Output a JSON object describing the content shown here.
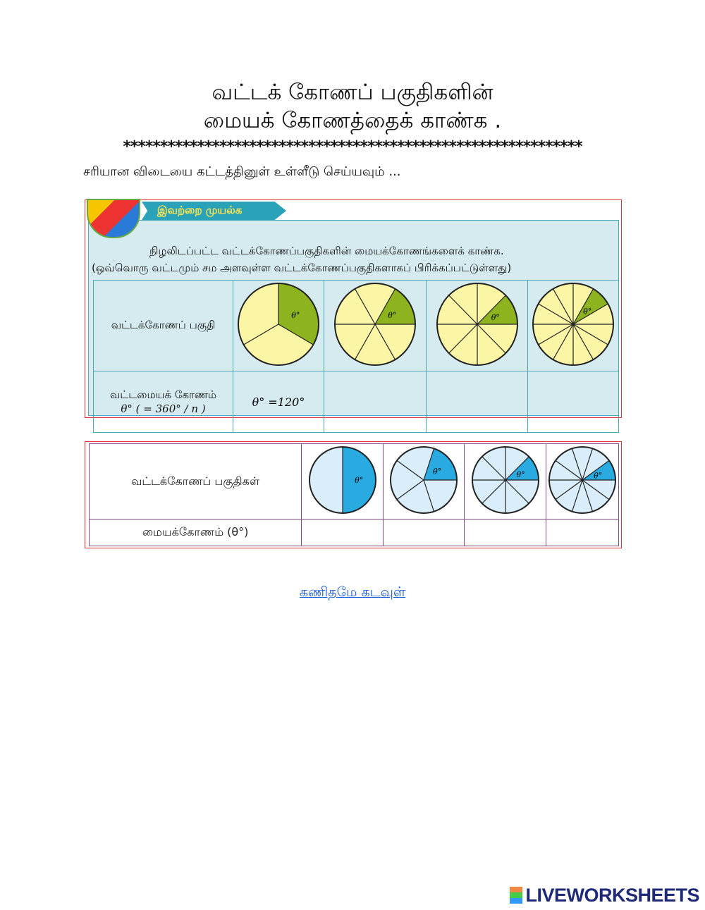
{
  "title": {
    "line1": "வட்டக் கோணப் பகுதிகளின்",
    "line2": "மையக் கோணத்தைக் காண்க ."
  },
  "stars": "**************************************************************",
  "instruction": "சரியான விடையை கட்டத்தினுள் உள்ளீடு செய்யவும் ...",
  "exercise1": {
    "banner": "இவற்றை முயல்க",
    "question": "நிழலிடப்பட்ட வட்டக்கோணப்பகுதிகளின் மையக்கோணங்களைக் காண்க.",
    "note": "(ஒவ்வொரு வட்டமும் சம அளவுள்ள வட்டக்கோணப்பகுதிகளாகப் பிரிக்கப்பட்டுள்ளது)",
    "row1_label": "வட்டக்கோணப் பகுதி",
    "row2_label": "வட்டமையக் கோணம்",
    "formula": "θ° ( = 360° / n )",
    "theta_label": "θ°",
    "sectors": [
      3,
      6,
      8,
      12
    ],
    "answers": [
      "θ° =120°",
      "",
      "",
      ""
    ],
    "shade_color": "#8db31e",
    "fill_color": "#fbf5a6"
  },
  "exercise2": {
    "row1_label": "வட்டக்கோணப் பகுதிகள்",
    "row2_label": "மையக்கோணம் (θ°)",
    "theta_label": "θ°",
    "sectors": [
      2,
      5,
      8,
      10
    ],
    "answers": [
      "",
      "",
      "",
      ""
    ],
    "shade_color": "#29abe2",
    "fill_color": "#d9eefa"
  },
  "footer_link": "கணிதமே கடவுள்",
  "logo": "LIVEWORKSHEETS"
}
